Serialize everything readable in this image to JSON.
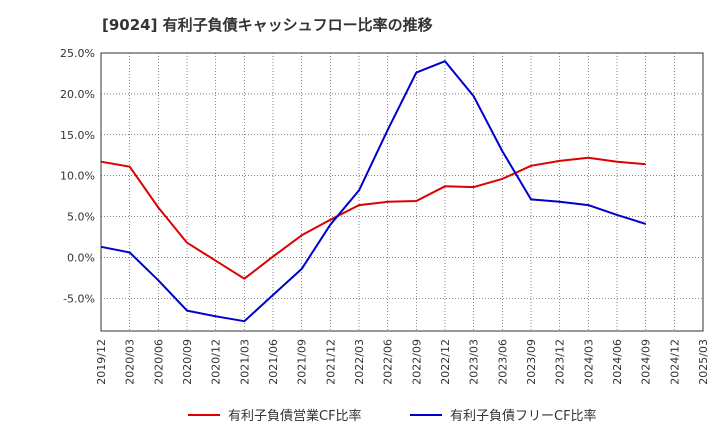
{
  "title": "[9024]  有利子負債キャッシュフロー比率の推移",
  "chart_data": {
    "type": "line",
    "title": "[9024]  有利子負債キャッシュフロー比率の推移",
    "x": [
      "2019/12",
      "2020/03",
      "2020/06",
      "2020/09",
      "2020/12",
      "2021/03",
      "2021/06",
      "2021/09",
      "2021/12",
      "2022/03",
      "2022/06",
      "2022/09",
      "2022/12",
      "2023/03",
      "2023/06",
      "2023/09",
      "2023/12",
      "2024/03",
      "2024/06",
      "2024/09",
      "2024/12",
      "2025/03"
    ],
    "y_ticks": [
      "25.0%",
      "20.0%",
      "15.0%",
      "10.0%",
      "5.0%",
      "0.0%",
      "-5.0%"
    ],
    "y_tick_values": [
      25,
      20,
      15,
      10,
      5,
      0,
      -5
    ],
    "ylim": [
      -9,
      25
    ],
    "grid": true,
    "legend_position": "bottom",
    "series": [
      {
        "name": "有利子負債営業CF比率",
        "color": "#dd0000",
        "values": [
          11.7,
          11.1,
          6.1,
          1.8,
          -0.4,
          -2.6,
          0.1,
          2.7,
          4.6,
          6.4,
          6.8,
          6.9,
          8.7,
          8.6,
          9.6,
          11.2,
          11.8,
          12.2,
          11.7,
          11.4,
          null,
          null
        ]
      },
      {
        "name": "有利子負債フリーCF比率",
        "color": "#0000cc",
        "values": [
          1.3,
          0.6,
          -2.8,
          -6.5,
          -7.2,
          -7.8,
          -4.6,
          -1.4,
          4.0,
          8.2,
          15.6,
          22.6,
          24.0,
          19.7,
          13.0,
          7.1,
          6.8,
          6.4,
          5.2,
          4.1,
          null,
          null
        ]
      }
    ]
  }
}
